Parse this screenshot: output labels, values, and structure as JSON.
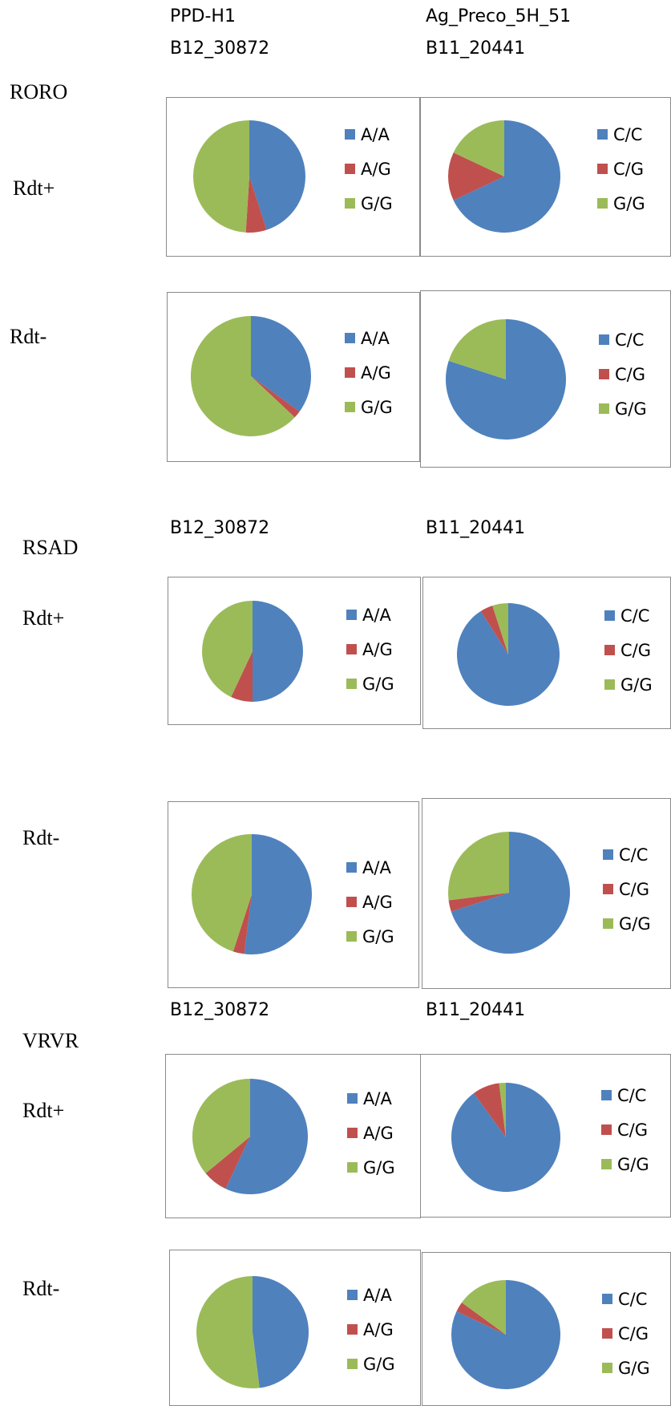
{
  "headers": {
    "col1_line1": "PPD-H1",
    "col1_line2": "B12_30872",
    "col2_line1": "Ag_Preco_5H_51",
    "col2_line2": "B11_20441",
    "rsad_col1": "B12_30872",
    "rsad_col2": "B11_20441",
    "vrvr_col1": "B12_30872",
    "vrvr_col2": "B11_20441"
  },
  "groups": {
    "roro": "RORO",
    "roro_plus": "Rdt+",
    "roro_minus": "Rdt-",
    "rsad": "RSAD",
    "rsad_plus": "Rdt+",
    "rsad_minus": "Rdt-",
    "vrvr": "VRVR",
    "vrvr_plus": "Rdt+",
    "vrvr_minus": "Rdt-"
  },
  "colors": {
    "blue": "#4F81BD",
    "red": "#C0504D",
    "green": "#9BBB59"
  },
  "chart_data": [
    {
      "type": "pie",
      "group": "RORO",
      "row": "Rdt+",
      "marker": "B12_30872",
      "categories": [
        "A/A",
        "A/G",
        "G/G"
      ],
      "values": [
        45,
        6,
        49
      ]
    },
    {
      "type": "pie",
      "group": "RORO",
      "row": "Rdt+",
      "marker": "B11_20441",
      "categories": [
        "C/C",
        "C/G",
        "G/G"
      ],
      "values": [
        68,
        14,
        18
      ]
    },
    {
      "type": "pie",
      "group": "RORO",
      "row": "Rdt-",
      "marker": "B12_30872",
      "categories": [
        "A/A",
        "A/G",
        "G/G"
      ],
      "values": [
        35,
        2,
        63
      ]
    },
    {
      "type": "pie",
      "group": "RORO",
      "row": "Rdt-",
      "marker": "B11_20441",
      "categories": [
        "C/C",
        "C/G",
        "G/G"
      ],
      "values": [
        80,
        0,
        20
      ]
    },
    {
      "type": "pie",
      "group": "RSAD",
      "row": "Rdt+",
      "marker": "B12_30872",
      "categories": [
        "A/A",
        "A/G",
        "G/G"
      ],
      "values": [
        50,
        7,
        43
      ]
    },
    {
      "type": "pie",
      "group": "RSAD",
      "row": "Rdt+",
      "marker": "B11_20441",
      "categories": [
        "C/C",
        "C/G",
        "G/G"
      ],
      "values": [
        91,
        4,
        5
      ]
    },
    {
      "type": "pie",
      "group": "RSAD",
      "row": "Rdt-",
      "marker": "B12_30872",
      "categories": [
        "A/A",
        "A/G",
        "G/G"
      ],
      "values": [
        52,
        3,
        45
      ]
    },
    {
      "type": "pie",
      "group": "RSAD",
      "row": "Rdt-",
      "marker": "B11_20441",
      "categories": [
        "C/C",
        "C/G",
        "G/G"
      ],
      "values": [
        70,
        3,
        27
      ]
    },
    {
      "type": "pie",
      "group": "VRVR",
      "row": "Rdt+",
      "marker": "B12_30872",
      "categories": [
        "A/A",
        "A/G",
        "G/G"
      ],
      "values": [
        57,
        7,
        36
      ]
    },
    {
      "type": "pie",
      "group": "VRVR",
      "row": "Rdt+",
      "marker": "B11_20441",
      "categories": [
        "C/C",
        "C/G",
        "G/G"
      ],
      "values": [
        90,
        8,
        2
      ]
    },
    {
      "type": "pie",
      "group": "VRVR",
      "row": "Rdt-",
      "marker": "B12_30872",
      "categories": [
        "A/A",
        "A/G",
        "G/G"
      ],
      "values": [
        48,
        0,
        52
      ]
    },
    {
      "type": "pie",
      "group": "VRVR",
      "row": "Rdt-",
      "marker": "B11_20441",
      "categories": [
        "C/C",
        "C/G",
        "G/G"
      ],
      "values": [
        82,
        3,
        15
      ]
    }
  ]
}
